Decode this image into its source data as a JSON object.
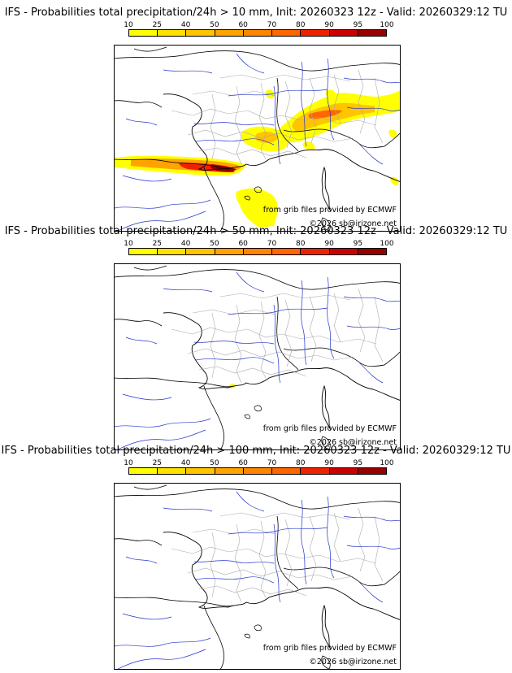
{
  "colorbar": {
    "ticks": [
      "10",
      "25",
      "40",
      "50",
      "60",
      "70",
      "80",
      "90",
      "95",
      "100"
    ],
    "colors": [
      "#ffff00",
      "#ffe100",
      "#ffc400",
      "#ffa300",
      "#ff8400",
      "#ff6600",
      "#ee2200",
      "#cc0000",
      "#990000",
      "#550000"
    ]
  },
  "panels": [
    {
      "title": "IFS - Probabilities total precipitation/24h > 10 mm, Init: 20260323 12z - Valid: 20260329:12 TU",
      "source": "from grib files provided by ECMWF",
      "copyright": "©2026 sb@irizone.net"
    },
    {
      "title": "IFS - Probabilities total precipitation/24h > 50 mm, Init: 20260323 12z - Valid: 20260329:12 TU",
      "source": "from grib files provided by ECMWF",
      "copyright": "©2026 sb@irizone.net"
    },
    {
      "title": "IFS - Probabilities total precipitation/24h > 100 mm, Init: 20260323 12z - Valid: 20260329:12 TU",
      "source": "from grib files provided by ECMWF",
      "copyright": "©2026 sb@irizone.net"
    }
  ],
  "map_colors": {
    "coast": "#000000",
    "border": "#000000",
    "regions": "#aaaaaa",
    "rivers": "#2233cc"
  }
}
